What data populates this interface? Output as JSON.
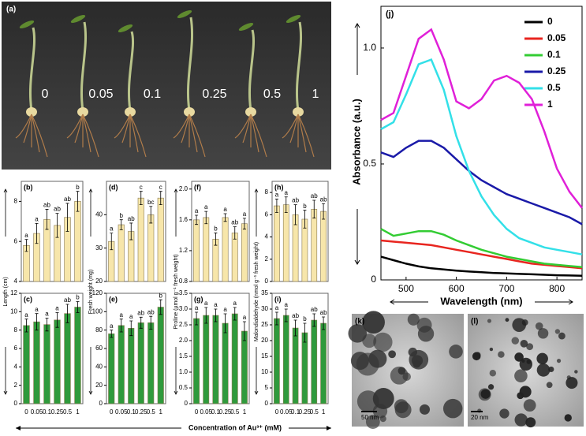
{
  "figure": {
    "xlabel": "Concentration of Au³⁺ (mM)",
    "photo": {
      "panel_label": "(a)",
      "labels": [
        "0",
        "0.05",
        "0.1",
        "0.25",
        "0.5",
        "1"
      ]
    },
    "tem": [
      {
        "panel_label": "(k)",
        "scale": "50 nm"
      },
      {
        "panel_label": "(l)",
        "scale": "20 nm"
      }
    ]
  },
  "chart_data": [
    {
      "type": "bar",
      "panel_label": "(b)",
      "ylabel": "Length (cm)",
      "color": "#f7e6aa",
      "ylim": [
        4,
        9
      ],
      "yticks": [
        4,
        6,
        8
      ],
      "values": [
        5.8,
        6.4,
        7.1,
        6.8,
        7.2,
        8.0
      ],
      "errors": [
        0.3,
        0.5,
        0.5,
        0.6,
        0.7,
        0.5
      ],
      "annotations": [
        "a",
        "a",
        "ab",
        "ab",
        "ab",
        "b"
      ]
    },
    {
      "type": "bar",
      "panel_label": "(c)",
      "color": "#2f9a3c",
      "ylim": [
        0,
        12
      ],
      "yticks": [
        0,
        2,
        4,
        6,
        8,
        10,
        12
      ],
      "categories": [
        "0",
        "0.05",
        "0.1",
        "0.25",
        "0.5",
        "1"
      ],
      "values": [
        8.5,
        8.9,
        8.6,
        9.1,
        9.8,
        10.5
      ],
      "errors": [
        0.7,
        0.9,
        0.7,
        0.8,
        1.0,
        0.6
      ],
      "annotations": [
        "a",
        "a",
        "a",
        "a",
        "ab",
        "b"
      ]
    },
    {
      "type": "bar",
      "panel_label": "(d)",
      "ylabel": "Fresh weight (mg)",
      "color": "#f7e6aa",
      "ylim": [
        20,
        50
      ],
      "yticks": [
        20,
        30,
        40
      ],
      "values": [
        32,
        37,
        35,
        45,
        40,
        45
      ],
      "errors": [
        2.5,
        1.5,
        2.5,
        2.0,
        2.5,
        2.0
      ],
      "annotations": [
        "a",
        "b",
        "ab",
        "c",
        "bc",
        "c"
      ]
    },
    {
      "type": "bar",
      "panel_label": "(e)",
      "color": "#2f9a3c",
      "ylim": [
        0,
        120
      ],
      "yticks": [
        0,
        20,
        40,
        60,
        80,
        100,
        120
      ],
      "categories": [
        "0",
        "0.05",
        "0.1",
        "0.25",
        "0.5",
        "1"
      ],
      "values": [
        76,
        85,
        82,
        88,
        88,
        105
      ],
      "errors": [
        4,
        7,
        8,
        6,
        7,
        8
      ],
      "annotations": [
        "a",
        "a",
        "a",
        "ab",
        "ab",
        "b"
      ]
    },
    {
      "type": "bar",
      "panel_label": "(f)",
      "ylabel": "Proline (µmol g⁻¹ fresh weight)",
      "color": "#f7e6aa",
      "ylim": [
        0.8,
        2.1
      ],
      "yticks": [
        0.8,
        1.2,
        1.6,
        {
          "value": 2,
          "label": "2.0"
        }
      ],
      "values": [
        1.6,
        1.63,
        1.35,
        1.63,
        1.43,
        1.55
      ],
      "errors": [
        0.06,
        0.08,
        0.08,
        0.05,
        0.08,
        0.07
      ],
      "annotations": [
        "a",
        "a",
        "b",
        "a",
        "ab",
        "a"
      ]
    },
    {
      "type": "bar",
      "panel_label": "(g)",
      "color": "#2f9a3c",
      "ylim": [
        0,
        3.5
      ],
      "yticks": [
        0,
        0.5,
        {
          "value": 1,
          "label": "1.0"
        },
        1.5,
        {
          "value": 2,
          "label": "2.0"
        },
        2.5,
        {
          "value": 3,
          "label": "3.0"
        },
        3.5
      ],
      "categories": [
        "0",
        "0.05",
        "0.1",
        "0.25",
        "0.5",
        "1"
      ],
      "values": [
        2.7,
        2.8,
        2.8,
        2.55,
        2.85,
        2.3
      ],
      "errors": [
        0.2,
        0.25,
        0.2,
        0.3,
        0.2,
        0.3
      ],
      "annotations": [
        "a",
        "a",
        "a",
        "a",
        "a",
        "a"
      ]
    },
    {
      "type": "bar",
      "panel_label": "(h)",
      "ylabel": "Malondialdehyde (nmol g⁻¹ fresh weight)",
      "color": "#f7e6aa",
      "ylim": [
        0,
        9
      ],
      "yticks": [
        0,
        2,
        4,
        6,
        8
      ],
      "values": [
        6.8,
        6.9,
        6.0,
        5.6,
        6.5,
        6.3
      ],
      "errors": [
        0.6,
        0.7,
        0.9,
        0.8,
        0.8,
        0.7
      ],
      "annotations": [
        "a",
        "a",
        "ab",
        "b",
        "ab",
        "ab"
      ]
    },
    {
      "type": "bar",
      "panel_label": "(i)",
      "color": "#2f9a3c",
      "ylim": [
        0,
        35
      ],
      "yticks": [
        0,
        5,
        10,
        15,
        20,
        25,
        30,
        35
      ],
      "categories": [
        "0",
        "0.05",
        "0.1",
        "0.25",
        "0.5",
        "1"
      ],
      "values": [
        27,
        28,
        24,
        22.5,
        26.5,
        25.5
      ],
      "errors": [
        2,
        2,
        2.5,
        3,
        2,
        2
      ],
      "annotations": [
        "a",
        "a",
        "ab",
        "b",
        "ab",
        "ab"
      ]
    },
    {
      "type": "line",
      "panel_label": "(j)",
      "xlabel": "Wavelength (nm)",
      "ylabel": "Absorbance (a.u.)",
      "xlim": [
        450,
        850
      ],
      "ylim": [
        0,
        1.18
      ],
      "xticks": [
        500,
        600,
        700,
        800
      ],
      "yticks": [
        0,
        0.5,
        {
          "value": 1,
          "label": "1.0"
        }
      ],
      "x": [
        450,
        475,
        500,
        525,
        550,
        575,
        600,
        625,
        650,
        675,
        700,
        725,
        750,
        775,
        800,
        825,
        850
      ],
      "series": [
        {
          "name": "0",
          "color": "#000000",
          "values": [
            0.1,
            0.085,
            0.07,
            0.058,
            0.05,
            0.045,
            0.04,
            0.036,
            0.033,
            0.03,
            0.028,
            0.026,
            0.024,
            0.022,
            0.02,
            0.019,
            0.018
          ]
        },
        {
          "name": "0.05",
          "color": "#e8251f",
          "values": [
            0.17,
            0.165,
            0.16,
            0.155,
            0.15,
            0.14,
            0.13,
            0.12,
            0.11,
            0.1,
            0.09,
            0.08,
            0.07,
            0.065,
            0.06,
            0.055,
            0.05
          ]
        },
        {
          "name": "0.1",
          "color": "#33cc33",
          "values": [
            0.22,
            0.19,
            0.2,
            0.21,
            0.21,
            0.195,
            0.17,
            0.15,
            0.13,
            0.115,
            0.1,
            0.09,
            0.08,
            0.07,
            0.065,
            0.06,
            0.055
          ]
        },
        {
          "name": "0.25",
          "color": "#1a1aa8",
          "values": [
            0.55,
            0.53,
            0.57,
            0.6,
            0.6,
            0.57,
            0.52,
            0.47,
            0.43,
            0.4,
            0.37,
            0.35,
            0.33,
            0.31,
            0.29,
            0.27,
            0.24
          ]
        },
        {
          "name": "0.5",
          "color": "#33e0e8",
          "values": [
            0.65,
            0.68,
            0.8,
            0.93,
            0.95,
            0.82,
            0.62,
            0.47,
            0.36,
            0.28,
            0.22,
            0.18,
            0.16,
            0.14,
            0.13,
            0.12,
            0.11
          ]
        },
        {
          "name": "1",
          "color": "#e020d8",
          "values": [
            0.69,
            0.72,
            0.88,
            1.04,
            1.08,
            0.95,
            0.77,
            0.74,
            0.78,
            0.86,
            0.88,
            0.85,
            0.78,
            0.64,
            0.48,
            0.38,
            0.31
          ]
        }
      ]
    }
  ]
}
